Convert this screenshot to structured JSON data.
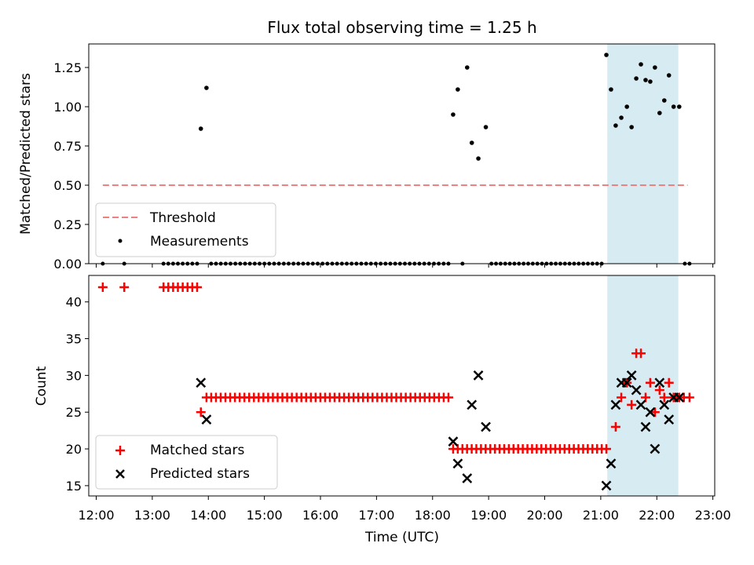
{
  "chart_data": {
    "type": "scatter",
    "title": "Flux total observing time = 1.25 h",
    "xlabel": "Time (UTC)",
    "x_ticks": [
      "12:00",
      "13:00",
      "14:00",
      "15:00",
      "16:00",
      "17:00",
      "18:00",
      "19:00",
      "20:00",
      "21:00",
      "22:00",
      "23:00"
    ],
    "xlim": [
      "11:52",
      "23:02"
    ],
    "highlight_span": {
      "start": "21:07",
      "end": "22:23",
      "color": "#add8e6"
    },
    "top": {
      "ylabel": "Matched/Predicted stars",
      "ylim": [
        0,
        1.4
      ],
      "y_ticks": [
        "0.00",
        "0.25",
        "0.50",
        "0.75",
        "1.00",
        "1.25"
      ],
      "legend_location": "lower-left",
      "threshold": {
        "name": "Threshold",
        "value": 0.5,
        "x_start": "12:07",
        "x_end": "22:33",
        "color": "#f08080"
      },
      "measurements": {
        "name": "Measurements",
        "color": "#000000",
        "nonzero_points": [
          [
            "13:52",
            0.86
          ],
          [
            "13:58",
            1.12
          ],
          [
            "18:22",
            0.95
          ],
          [
            "18:27",
            1.11
          ],
          [
            "18:37",
            1.25
          ],
          [
            "18:42",
            0.77
          ],
          [
            "18:49",
            0.67
          ],
          [
            "18:57",
            0.87
          ],
          [
            "21:06",
            1.33
          ],
          [
            "21:11",
            1.11
          ],
          [
            "21:16",
            0.88
          ],
          [
            "21:22",
            0.93
          ],
          [
            "21:28",
            1.0
          ],
          [
            "21:33",
            0.87
          ],
          [
            "21:38",
            1.18
          ],
          [
            "21:43",
            1.27
          ],
          [
            "21:48",
            1.17
          ],
          [
            "21:53",
            1.16
          ],
          [
            "21:58",
            1.25
          ],
          [
            "22:03",
            0.96
          ],
          [
            "22:08",
            1.04
          ],
          [
            "22:13",
            1.2
          ],
          [
            "22:18",
            1.0
          ],
          [
            "22:24",
            1.0
          ]
        ],
        "zero_points": [
          [
            "12:07",
            "12:07",
            1
          ],
          [
            "12:30",
            "12:30",
            1
          ],
          [
            "13:12",
            "13:48",
            8
          ],
          [
            "14:03",
            "18:17",
            50
          ],
          [
            "18:32",
            "18:32",
            1
          ],
          [
            "19:03",
            "21:01",
            25
          ],
          [
            "22:30",
            "22:35",
            2
          ]
        ]
      }
    },
    "bottom": {
      "ylabel": "Count",
      "ylim": [
        13.6,
        43.6
      ],
      "y_ticks": [
        "15",
        "20",
        "25",
        "30",
        "35",
        "40"
      ],
      "legend_location": "lower-left",
      "matched": {
        "name": "Matched stars",
        "color": "#ff0000",
        "marker": "+",
        "points": [
          [
            "12:07",
            42
          ],
          [
            "12:30",
            42
          ],
          [
            "13:52",
            25
          ],
          [
            "21:16",
            23
          ],
          [
            "21:22",
            27
          ],
          [
            "21:28",
            29
          ],
          [
            "21:33",
            26
          ],
          [
            "21:38",
            33
          ],
          [
            "21:43",
            33
          ],
          [
            "21:48",
            27
          ],
          [
            "21:53",
            29
          ],
          [
            "21:58",
            25
          ],
          [
            "22:03",
            28
          ],
          [
            "22:08",
            27
          ],
          [
            "22:13",
            29
          ],
          [
            "22:18",
            27
          ],
          [
            "22:24",
            27
          ],
          [
            "22:29",
            27
          ],
          [
            "22:35",
            27
          ]
        ],
        "runs": [
          [
            "13:12",
            "13:48",
            8,
            42
          ],
          [
            "13:58",
            "18:17",
            52,
            27
          ],
          [
            "18:22",
            "21:06",
            34,
            20
          ]
        ]
      },
      "predicted": {
        "name": "Predicted stars",
        "color": "#000000",
        "marker": "x",
        "points": [
          [
            "13:52",
            29
          ],
          [
            "13:58",
            24
          ],
          [
            "18:22",
            21
          ],
          [
            "18:27",
            18
          ],
          [
            "18:37",
            16
          ],
          [
            "18:42",
            26
          ],
          [
            "18:49",
            30
          ],
          [
            "18:57",
            23
          ],
          [
            "21:06",
            15
          ],
          [
            "21:11",
            18
          ],
          [
            "21:16",
            26
          ],
          [
            "21:22",
            29
          ],
          [
            "21:28",
            29
          ],
          [
            "21:33",
            30
          ],
          [
            "21:38",
            28
          ],
          [
            "21:43",
            26
          ],
          [
            "21:48",
            23
          ],
          [
            "21:53",
            25
          ],
          [
            "21:58",
            20
          ],
          [
            "22:03",
            29
          ],
          [
            "22:08",
            26
          ],
          [
            "22:13",
            24
          ],
          [
            "22:18",
            27
          ],
          [
            "22:24",
            27
          ]
        ]
      }
    }
  }
}
